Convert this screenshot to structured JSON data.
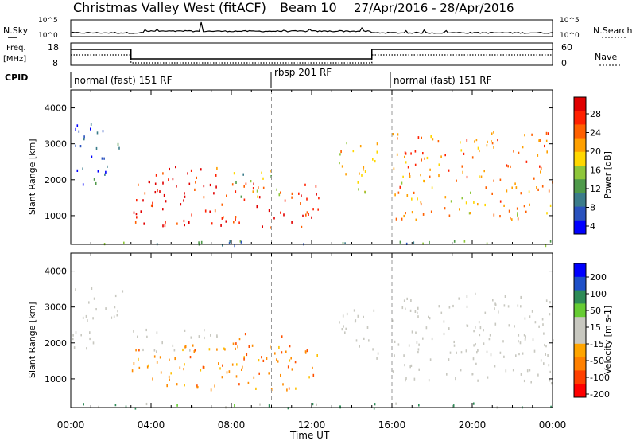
{
  "header": {
    "station": "Christmas Valley West (fitACF)",
    "beam": "Beam 10",
    "dates": "27/Apr/2016 - 28/Apr/2016"
  },
  "nsky_label": "N.Sky",
  "nsearch_label": "N.Search",
  "freq_label_1": "Freq.",
  "freq_label_2": "[MHz]",
  "nave_label": "Nave",
  "cpid_label": "CPID",
  "x_axis_title": "Time UT",
  "colors": {
    "power_scale": [
      "#0000ff",
      "#2a52be",
      "#3b7c8a",
      "#4f9a4a",
      "#8ec63a",
      "#ffd700",
      "#ffa000",
      "#ff6000",
      "#ff2000",
      "#e00000"
    ],
    "velocity_scale": [
      "#0000ff",
      "#1e50c8",
      "#2e8b57",
      "#66cc33",
      "#c8c8c0",
      "#c8c8c0",
      "#ffa500",
      "#ff8000",
      "#ff4000",
      "#ff0000"
    ]
  },
  "chart_data": [
    {
      "type": "line",
      "name": "N.Sky / N.Search",
      "x_unit": "hours UT",
      "left_ticks": [
        "10^5",
        "10^0"
      ],
      "right_ticks": [
        "10^5",
        "10^0"
      ],
      "approx_level": "10^0 to 10^1 throughout, slightly elevated 04:00-15:00"
    },
    {
      "type": "line",
      "name": "Freq. / Nave",
      "left_ticks": [
        "18",
        "8"
      ],
      "right_ticks": [
        "60",
        "0"
      ],
      "freq_steps": [
        {
          "from": 0,
          "to": 3,
          "value": "high"
        },
        {
          "from": 3,
          "to": 15,
          "value": "low"
        },
        {
          "from": 15,
          "to": 24,
          "value": "high"
        }
      ]
    },
    {
      "type": "table",
      "name": "CPID",
      "segments": [
        {
          "start": 0,
          "end": 10,
          "label": "normal (fast) 151 RF"
        },
        {
          "start": 10,
          "end": 16,
          "label": "rbsp 201 RF"
        },
        {
          "start": 16,
          "end": 24,
          "label": "normal (fast) 151 RF"
        }
      ]
    },
    {
      "type": "heatmap",
      "name": "Power",
      "xlabel": "Time UT",
      "ylabel": "Slant Range [km]",
      "xlim": [
        0,
        24
      ],
      "ylim": [
        200,
        4500
      ],
      "x_ticks": [
        "00:00",
        "04:00",
        "08:00",
        "12:00",
        "16:00",
        "20:00",
        "00:00"
      ],
      "y_ticks": [
        "1000",
        "2000",
        "3000",
        "4000"
      ],
      "colorbar_label": "Power [dB]",
      "colorbar_ticks": [
        "28",
        "24",
        "20",
        "16",
        "12",
        "8",
        "4"
      ],
      "vertical_markers": [
        10,
        16
      ],
      "regions": [
        {
          "t0": 0.2,
          "t1": 2.6,
          "r0": 2600,
          "r1": 3600,
          "level": 6
        },
        {
          "t0": 0.0,
          "t1": 2.0,
          "r0": 1800,
          "r1": 2400,
          "level": 6
        },
        {
          "t0": 3.0,
          "t1": 7.4,
          "r0": 1750,
          "r1": 2400,
          "level": 26
        },
        {
          "t0": 3.0,
          "t1": 12.5,
          "r0": 700,
          "r1": 2000,
          "level": 27
        },
        {
          "t0": 8.0,
          "t1": 10.5,
          "r0": 1500,
          "r1": 2300,
          "level": 14
        },
        {
          "t0": 13.3,
          "t1": 15.3,
          "r0": 1600,
          "r1": 3100,
          "level": 18
        },
        {
          "t0": 16.0,
          "t1": 24.0,
          "r0": 2000,
          "r1": 3400,
          "level": 22
        },
        {
          "t0": 16.0,
          "t1": 24.0,
          "r0": 900,
          "r1": 2000,
          "level": 20
        },
        {
          "t0": 0.0,
          "t1": 24.0,
          "r0": 200,
          "r1": 350,
          "level": 10
        }
      ]
    },
    {
      "type": "heatmap",
      "name": "Velocity",
      "xlabel": "Time UT",
      "ylabel": "Slant Range [km]",
      "xlim": [
        0,
        24
      ],
      "ylim": [
        200,
        4500
      ],
      "x_ticks": [
        "00:00",
        "04:00",
        "08:00",
        "12:00",
        "16:00",
        "20:00",
        "00:00"
      ],
      "y_ticks": [
        "1000",
        "2000",
        "3000",
        "4000"
      ],
      "colorbar_label": "Velocity [m s-1]",
      "colorbar_ticks": [
        "200",
        "100",
        "50",
        "15",
        "-15",
        "-50",
        "-100",
        "-200"
      ],
      "vertical_markers": [
        10,
        16
      ],
      "regions": [
        {
          "t0": 0.2,
          "t1": 2.6,
          "r0": 2600,
          "r1": 3600,
          "level": 0
        },
        {
          "t0": 0.0,
          "t1": 2.0,
          "r0": 1800,
          "r1": 2400,
          "level": 0
        },
        {
          "t0": 3.0,
          "t1": 7.4,
          "r0": 1750,
          "r1": 2400,
          "level": 0
        },
        {
          "t0": 3.0,
          "t1": 12.5,
          "r0": 700,
          "r1": 2000,
          "level": -70
        },
        {
          "t0": 8.0,
          "t1": 10.5,
          "r0": 1500,
          "r1": 2300,
          "level": -120
        },
        {
          "t0": 13.3,
          "t1": 15.3,
          "r0": 1600,
          "r1": 3100,
          "level": 0
        },
        {
          "t0": 16.0,
          "t1": 24.0,
          "r0": 2000,
          "r1": 3400,
          "level": 0
        },
        {
          "t0": 16.0,
          "t1": 24.0,
          "r0": 900,
          "r1": 2000,
          "level": 0
        },
        {
          "t0": 0.0,
          "t1": 24.0,
          "r0": 200,
          "r1": 350,
          "level": 25
        }
      ]
    }
  ]
}
